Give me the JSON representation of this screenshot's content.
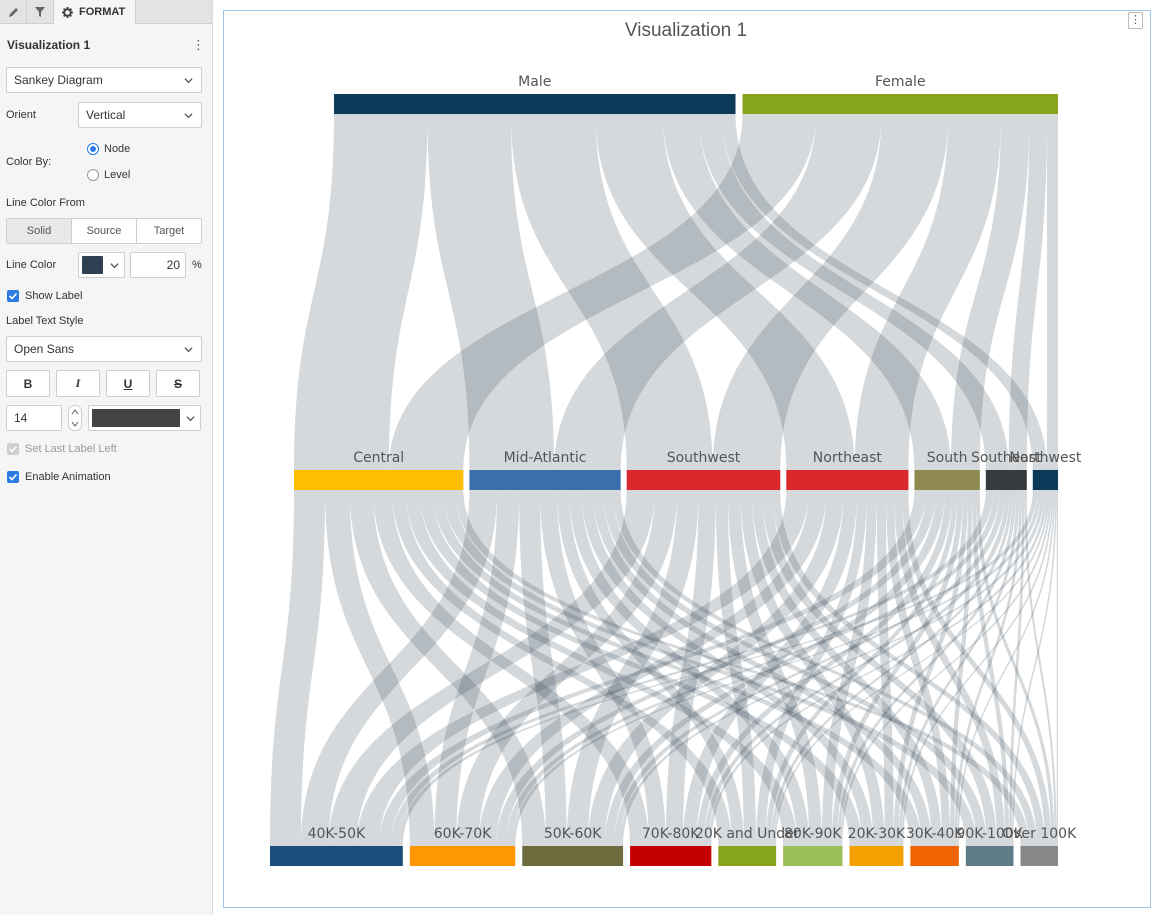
{
  "panel": {
    "tabs": {
      "edit_icon": "pencil-icon",
      "filter_icon": "filter-icon",
      "format_icon": "gear-icon",
      "format_label": "FORMAT"
    },
    "title": "Visualization 1",
    "chart_type": "Sankey Diagram",
    "orient": {
      "label": "Orient",
      "value": "Vertical"
    },
    "color_by": {
      "label": "Color By:",
      "options": [
        "Node",
        "Level"
      ],
      "selected": "Node"
    },
    "line_color_from": {
      "label": "Line Color From",
      "options": [
        "Solid",
        "Source",
        "Target"
      ],
      "selected": "Solid"
    },
    "line_color": {
      "label": "Line Color",
      "swatch": "#2f4052",
      "opacity": "20",
      "unit": "%"
    },
    "show_label": {
      "label": "Show Label",
      "checked": true
    },
    "label_text_style": {
      "label": "Label Text Style",
      "font": "Open Sans",
      "bold": "B",
      "italic": "I",
      "underline": "U",
      "strike": "S",
      "size": "14",
      "color": "#444444"
    },
    "set_last_label_left": {
      "label": "Set Last Label Left",
      "checked": true,
      "disabled": true
    },
    "enable_animation": {
      "label": "Enable Animation",
      "checked": true
    }
  },
  "card": {
    "title": "Visualization 1",
    "menu_icon": "kebab-icon"
  },
  "chart_data": {
    "type": "sankey",
    "title": "Visualization 1",
    "orient": "vertical",
    "link_color": "#2f4052",
    "link_opacity": 0.2,
    "levels": [
      [
        {
          "name": "Male",
          "value": 560,
          "color": "#0e3a59"
        },
        {
          "name": "Female",
          "value": 440,
          "color": "#86a51a"
        }
      ],
      [
        {
          "name": "Central",
          "value": 215,
          "color": "#ffbf00"
        },
        {
          "name": "Mid-Atlantic",
          "value": 192,
          "color": "#3a6fae"
        },
        {
          "name": "Southwest",
          "value": 195,
          "color": "#d9292b"
        },
        {
          "name": "Northeast",
          "value": 155,
          "color": "#d9292b"
        },
        {
          "name": "South",
          "value": 83,
          "color": "#8e8a4f"
        },
        {
          "name": "Southeast",
          "value": 52,
          "color": "#363b40"
        },
        {
          "name": "Northwest",
          "value": 32,
          "color": "#0e3a59"
        }
      ],
      [
        {
          "name": "40K-50K",
          "value": 170,
          "color": "#1b4c7c"
        },
        {
          "name": "60K-70K",
          "value": 135,
          "color": "#ff9800"
        },
        {
          "name": "50K-60K",
          "value": 129,
          "color": "#6e6b3e"
        },
        {
          "name": "70K-80K",
          "value": 104,
          "color": "#c40000"
        },
        {
          "name": "20K and Under",
          "value": 74,
          "color": "#86a51a"
        },
        {
          "name": "80K-90K",
          "value": 76,
          "color": "#9bc05a"
        },
        {
          "name": "20K-30K",
          "value": 69,
          "color": "#f2a100"
        },
        {
          "name": "30K-40K",
          "value": 62,
          "color": "#f06400"
        },
        {
          "name": "90K-100K",
          "value": 61,
          "color": "#5f7b88"
        },
        {
          "name": "Over 100K",
          "value": 48,
          "color": "#888888"
        }
      ]
    ]
  }
}
